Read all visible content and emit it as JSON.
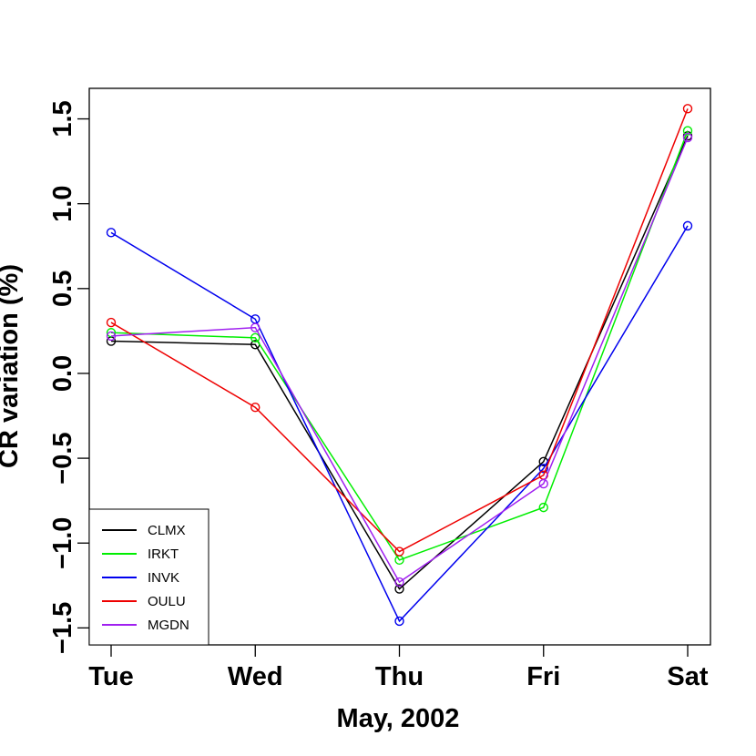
{
  "chart_data": {
    "type": "line",
    "title": "",
    "xlabel": "May, 2002",
    "ylabel": "CR variation (%)",
    "categories": [
      "Tue",
      "Wed",
      "Thu",
      "Fri",
      "Sat"
    ],
    "ylim": [
      -1.6,
      1.68
    ],
    "yticks": [
      -1.5,
      -1.0,
      -0.5,
      0.0,
      0.5,
      1.0,
      1.5
    ],
    "ytick_labels": [
      "−1.5",
      "−1.0",
      "−0.5",
      "0.0",
      "0.5",
      "1.0",
      "1.5"
    ],
    "grid": false,
    "legend_position": "bottom-left",
    "series": [
      {
        "name": "CLMX",
        "color": "#000000",
        "values": [
          0.19,
          0.17,
          -1.27,
          -0.52,
          1.4
        ]
      },
      {
        "name": "IRKT",
        "color": "#00ee00",
        "values": [
          0.24,
          0.21,
          -1.1,
          -0.79,
          1.43
        ]
      },
      {
        "name": "INVK",
        "color": "#0000ee",
        "values": [
          0.83,
          0.32,
          -1.46,
          -0.56,
          0.87
        ]
      },
      {
        "name": "OULU",
        "color": "#ee0000",
        "values": [
          0.3,
          -0.2,
          -1.05,
          -0.6,
          1.56
        ]
      },
      {
        "name": "MGDN",
        "color": "#a020f0",
        "values": [
          0.22,
          0.27,
          -1.23,
          -0.65,
          1.39
        ]
      }
    ]
  }
}
